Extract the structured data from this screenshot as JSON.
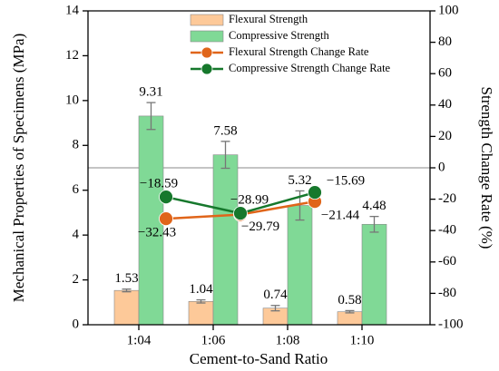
{
  "chart_data": {
    "type": "bar",
    "x_label": "Cement-to-Sand Ratio",
    "y_label": "Mechanical Properties of Specimens (MPa)",
    "y2_label": "Strength Change Rate (%)",
    "categories": [
      "1:04",
      "1:06",
      "1:08",
      "1:10"
    ],
    "ylim": [
      0,
      14
    ],
    "yticks": [
      0,
      2,
      4,
      6,
      8,
      10,
      12,
      14
    ],
    "y2lim": [
      -100,
      100
    ],
    "y2ticks": [
      -100,
      -80,
      -60,
      -40,
      -20,
      0,
      20,
      40,
      60,
      80,
      100
    ],
    "y2_refline": 0,
    "series": [
      {
        "name": "Flexural Strength",
        "type": "bar",
        "color": "#fdc999",
        "values": [
          1.53,
          1.04,
          0.74,
          0.58
        ],
        "errors": [
          0.06,
          0.07,
          0.12,
          0.05
        ]
      },
      {
        "name": "Compressive Strength",
        "type": "bar",
        "color": "#80d996",
        "values": [
          9.31,
          7.58,
          5.32,
          4.48
        ],
        "errors": [
          0.6,
          0.6,
          0.65,
          0.35
        ]
      },
      {
        "name": "Flexural Strength Change Rate",
        "type": "line",
        "axis": "y2",
        "color": "#e0651a",
        "values": [
          -32.43,
          -29.79,
          -21.44,
          null
        ],
        "value_labels": [
          "−32.43",
          "−29.79",
          "−21.44",
          null
        ]
      },
      {
        "name": "Compressive Strength Change Rate",
        "type": "line",
        "axis": "y2",
        "color": "#16782c",
        "values": [
          -18.59,
          -28.99,
          -15.69,
          null
        ],
        "value_labels": [
          "−18.59",
          "−28.99",
          "−15.69",
          null
        ]
      }
    ]
  }
}
